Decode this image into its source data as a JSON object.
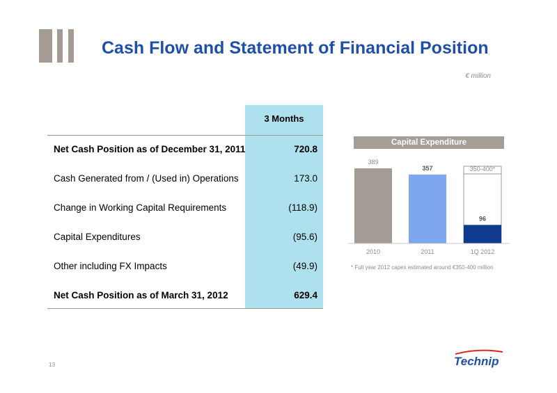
{
  "slide": {
    "title": "Cash Flow and Statement of Financial Position",
    "unit": "€ million",
    "page_number": "13",
    "logo_text": "Technip"
  },
  "table": {
    "column_header": "3 Months",
    "rows": [
      {
        "label": "Net Cash Position as of December 31, 2011",
        "value": "720.8",
        "bold": true
      },
      {
        "label": "Cash Generated from / (Used in) Operations",
        "value": "173.0",
        "bold": false
      },
      {
        "label": "Change in Working Capital Requirements",
        "value": "(118.9)",
        "bold": false
      },
      {
        "label": "Capital Expenditures",
        "value": "(95.6)",
        "bold": false
      },
      {
        "label": "Other including FX Impacts",
        "value": "(49.9)",
        "bold": false
      },
      {
        "label": "Net Cash Position as of March 31, 2012",
        "value": "629.4",
        "bold": true
      }
    ]
  },
  "chart_data": {
    "type": "bar",
    "title": "Capital Expenditure",
    "categories": [
      "2010",
      "2011",
      "1Q 2012"
    ],
    "values": [
      389,
      357,
      96
    ],
    "data_labels": [
      "389",
      "357",
      "96"
    ],
    "estimate": {
      "category": "1Q 2012",
      "low": 350,
      "high": 400,
      "label": "350-400*"
    },
    "bar_colors": [
      "#a39b94",
      "#7fa7f0",
      "#0f3a8e"
    ],
    "ylim": [
      0,
      400
    ],
    "grid": false,
    "footnote": "* Full year 2012 capex estimated around €350-400 million"
  },
  "colors": {
    "title": "#1f4fa8",
    "table_highlight": "#aee0ee",
    "chart_header": "#a59e97",
    "logo_blue": "#1f4fa8",
    "logo_red": "#e2231a"
  }
}
